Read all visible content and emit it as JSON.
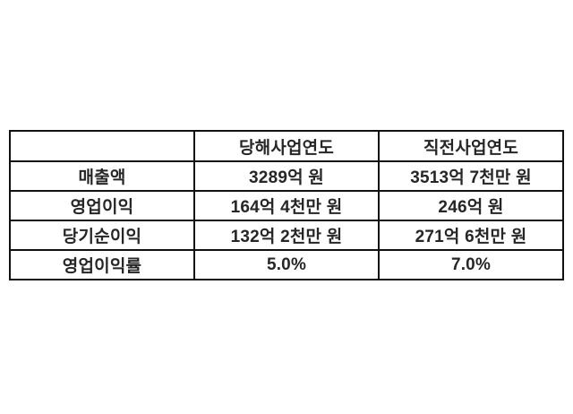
{
  "chart_data": {
    "type": "table",
    "title": "",
    "columns": [
      "",
      "당해사업연도",
      "직전사업연도"
    ],
    "rows": [
      [
        "매출액",
        "3289억 원",
        "3513억 7천만 원"
      ],
      [
        "영업이익",
        "164억 4천만 원",
        "246억 원"
      ],
      [
        "당기순이익",
        "132억 2천만 원",
        "271억 6천만 원"
      ],
      [
        "영업이익률",
        "5.0%",
        "7.0%"
      ]
    ]
  },
  "colors": {
    "background": "#ffffff",
    "border": "#111111",
    "text": "#262626"
  }
}
